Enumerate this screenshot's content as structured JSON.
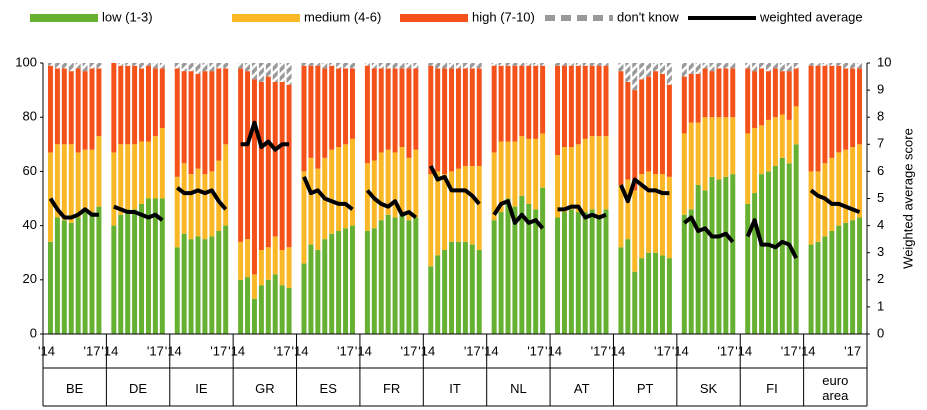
{
  "chart_data": {
    "type": "stacked-bar",
    "y2label": "Weighted average score",
    "groups": [
      "BE",
      "DE",
      "IE",
      "GR",
      "ES",
      "FR",
      "IT",
      "NL",
      "AT",
      "PT",
      "SK",
      "FI",
      "euro area"
    ],
    "categories": [
      "'14",
      null,
      null,
      null,
      null,
      null,
      "'17",
      null
    ],
    "ylim": [
      0,
      100
    ],
    "yticks": [
      0,
      20,
      40,
      60,
      80,
      100
    ],
    "y2lim": [
      0,
      10
    ],
    "y2ticks": [
      0,
      1,
      2,
      3,
      4,
      5,
      6,
      7,
      8,
      9,
      10
    ],
    "series": [
      {
        "name": "low (1-3)",
        "color": "#66b032",
        "values": [
          [
            34,
            43,
            42,
            41,
            43,
            46,
            45,
            47
          ],
          [
            40,
            44,
            46,
            46,
            48,
            50,
            50,
            50
          ],
          [
            32,
            37,
            35,
            36,
            35,
            36,
            38,
            40
          ],
          [
            20,
            21,
            13,
            18,
            20,
            22,
            18,
            17
          ],
          [
            26,
            33,
            31,
            35,
            37,
            38,
            39,
            40
          ],
          [
            38,
            39,
            42,
            44,
            43,
            45,
            42,
            43
          ],
          [
            25,
            29,
            31,
            34,
            34,
            34,
            33,
            31
          ],
          [
            42,
            45,
            50,
            47,
            51,
            48,
            46,
            54
          ],
          [
            43,
            45,
            46,
            45,
            45,
            46,
            44,
            46
          ],
          [
            32,
            35,
            23,
            28,
            30,
            30,
            29,
            28
          ],
          [
            44,
            46,
            55,
            53,
            58,
            57,
            58,
            59
          ],
          [
            48,
            52,
            59,
            60,
            62,
            65,
            63,
            70
          ],
          [
            33,
            34,
            36,
            38,
            40,
            41,
            42,
            43
          ]
        ]
      },
      {
        "name": "medium (4-6)",
        "color": "#fbb826",
        "values": [
          [
            33,
            27,
            28,
            29,
            24,
            22,
            23,
            26
          ],
          [
            27,
            26,
            24,
            24,
            23,
            21,
            23,
            26
          ],
          [
            26,
            26,
            24,
            25,
            24,
            24,
            26,
            30
          ],
          [
            14,
            14,
            9,
            13,
            12,
            14,
            13,
            15
          ],
          [
            34,
            32,
            30,
            30,
            31,
            31,
            31,
            32
          ],
          [
            25,
            25,
            25,
            24,
            24,
            24,
            23,
            25
          ],
          [
            34,
            31,
            28,
            26,
            27,
            28,
            29,
            31
          ],
          [
            25,
            26,
            21,
            24,
            22,
            24,
            26,
            20
          ],
          [
            23,
            24,
            23,
            25,
            27,
            27,
            29,
            27
          ],
          [
            23,
            22,
            30,
            31,
            30,
            29,
            30,
            30
          ],
          [
            30,
            32,
            23,
            27,
            22,
            23,
            22,
            21
          ],
          [
            26,
            24,
            18,
            19,
            18,
            16,
            16,
            14
          ],
          [
            27,
            26,
            27,
            27,
            27,
            27,
            27,
            27
          ]
        ]
      },
      {
        "name": "high (7-10)",
        "color": "#f5521b",
        "values": [
          [
            32,
            28,
            28,
            27,
            31,
            29,
            30,
            25
          ],
          [
            33,
            29,
            29,
            29,
            27,
            28,
            25,
            22
          ],
          [
            40,
            34,
            38,
            35,
            38,
            37,
            34,
            28
          ],
          [
            64,
            62,
            72,
            62,
            63,
            57,
            62,
            60
          ],
          [
            39,
            34,
            38,
            33,
            31,
            29,
            28,
            26
          ],
          [
            36,
            34,
            31,
            30,
            31,
            29,
            33,
            30
          ],
          [
            40,
            38,
            39,
            38,
            37,
            36,
            36,
            36
          ],
          [
            32,
            28,
            28,
            28,
            26,
            27,
            27,
            25
          ],
          [
            33,
            30,
            30,
            29,
            27,
            26,
            26,
            26
          ],
          [
            42,
            36,
            37,
            35,
            35,
            38,
            37,
            34
          ],
          [
            21,
            18,
            18,
            18,
            17,
            18,
            18,
            18
          ],
          [
            24,
            21,
            21,
            18,
            18,
            16,
            18,
            14
          ],
          [
            39,
            39,
            36,
            34,
            32,
            30,
            29,
            28
          ]
        ]
      },
      {
        "name": "don't know",
        "color": "#9a9a9a",
        "hatch": true,
        "values": [
          [
            1,
            2,
            2,
            3,
            2,
            3,
            2,
            2
          ],
          [
            0,
            1,
            1,
            1,
            2,
            1,
            2,
            2
          ],
          [
            2,
            3,
            3,
            4,
            3,
            3,
            2,
            2
          ],
          [
            2,
            3,
            6,
            7,
            5,
            7,
            7,
            8
          ],
          [
            1,
            1,
            1,
            2,
            1,
            2,
            2,
            2
          ],
          [
            1,
            2,
            2,
            2,
            2,
            2,
            2,
            2
          ],
          [
            1,
            2,
            2,
            2,
            2,
            2,
            2,
            2
          ],
          [
            1,
            1,
            1,
            1,
            1,
            1,
            1,
            1
          ],
          [
            1,
            1,
            1,
            1,
            1,
            1,
            1,
            1
          ],
          [
            3,
            7,
            10,
            6,
            5,
            3,
            4,
            8
          ],
          [
            5,
            4,
            4,
            2,
            3,
            2,
            2,
            2
          ],
          [
            2,
            3,
            2,
            3,
            2,
            3,
            3,
            2
          ],
          [
            1,
            1,
            1,
            1,
            1,
            2,
            2,
            2
          ]
        ]
      },
      {
        "name": "weighted average",
        "color": "#000000",
        "axis": "y2",
        "values": [
          [
            5.0,
            4.6,
            4.3,
            4.3,
            4.4,
            4.6,
            4.4,
            4.4
          ],
          [
            4.7,
            4.6,
            4.5,
            4.5,
            4.4,
            4.3,
            4.4,
            4.2
          ],
          [
            5.4,
            5.2,
            5.2,
            5.3,
            5.2,
            5.3,
            4.9,
            4.6
          ],
          [
            7.0,
            7.0,
            7.8,
            6.9,
            7.1,
            6.8,
            7.0,
            7.0
          ],
          [
            5.8,
            5.2,
            5.3,
            5.0,
            4.9,
            4.8,
            4.8,
            4.6
          ],
          [
            5.3,
            5.0,
            4.8,
            4.7,
            4.9,
            4.4,
            4.5,
            4.3
          ],
          [
            6.2,
            5.7,
            5.8,
            5.3,
            5.3,
            5.3,
            5.1,
            4.8
          ],
          [
            4.4,
            4.8,
            4.9,
            4.1,
            4.4,
            4.1,
            4.2,
            3.9
          ],
          [
            4.6,
            4.6,
            4.7,
            4.7,
            4.3,
            4.4,
            4.3,
            4.4
          ],
          [
            5.5,
            4.9,
            5.7,
            5.5,
            5.3,
            5.3,
            5.2,
            5.2
          ],
          [
            4.1,
            4.3,
            3.8,
            3.9,
            3.6,
            3.6,
            3.7,
            3.4
          ],
          [
            3.6,
            4.2,
            3.3,
            3.3,
            3.2,
            3.4,
            3.3,
            2.8
          ],
          [
            5.3,
            5.1,
            5.0,
            4.8,
            4.8,
            4.7,
            4.6,
            4.5
          ]
        ]
      }
    ]
  }
}
